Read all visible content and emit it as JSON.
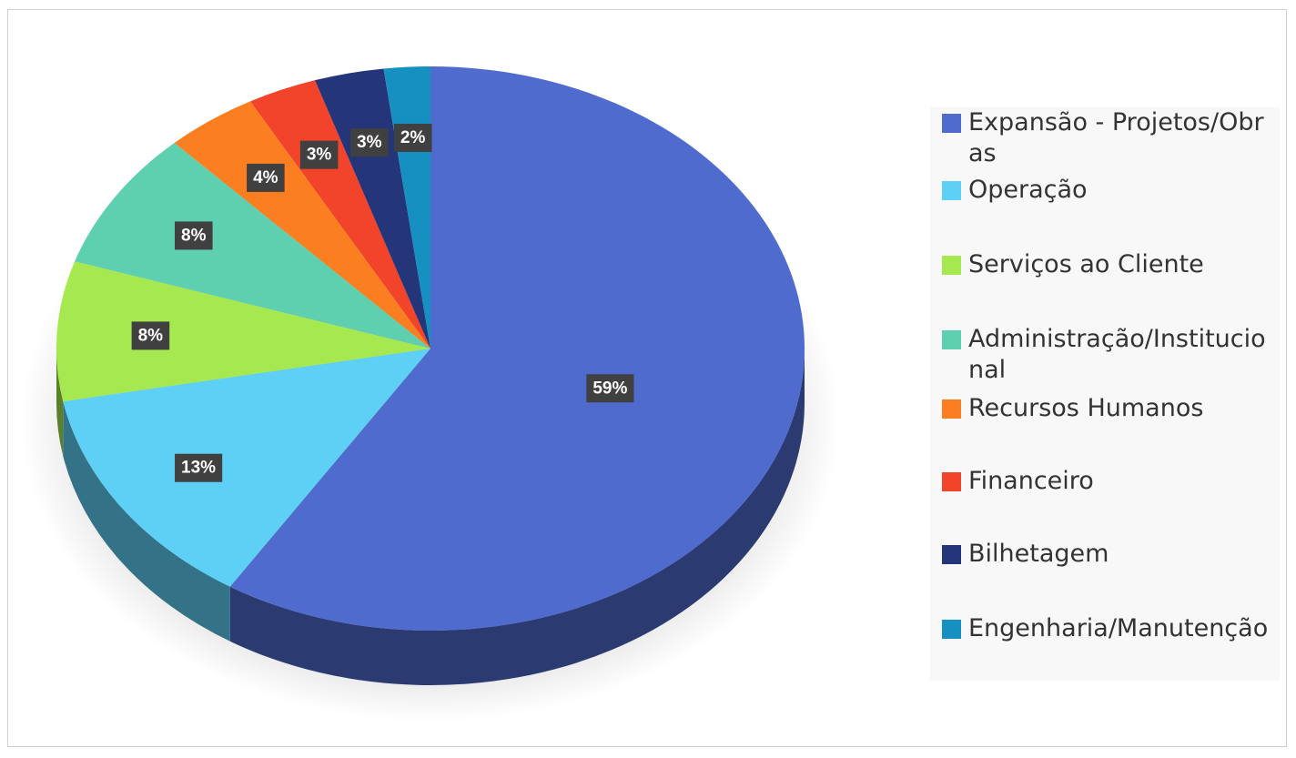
{
  "chart_data": {
    "type": "pie",
    "categories": [
      "Expansão - Projetos/Obras",
      "Operação",
      "Serviços ao Cliente",
      "Administração/Institucional",
      "Recursos Humanos",
      "Financeiro",
      "Bilhetagem",
      "Engenharia/Manutenção"
    ],
    "values": [
      59,
      13,
      8,
      8,
      4,
      3,
      3,
      2
    ],
    "value_labels": [
      "59%",
      "13%",
      "8%",
      "8%",
      "4%",
      "3%",
      "3%",
      "2%"
    ],
    "colors": [
      "#4f6bce",
      "#5ecff5",
      "#a6e850",
      "#5ecfaf",
      "#fb7f21",
      "#f2432b",
      "#243679",
      "#1690c0"
    ],
    "legend": "right"
  }
}
